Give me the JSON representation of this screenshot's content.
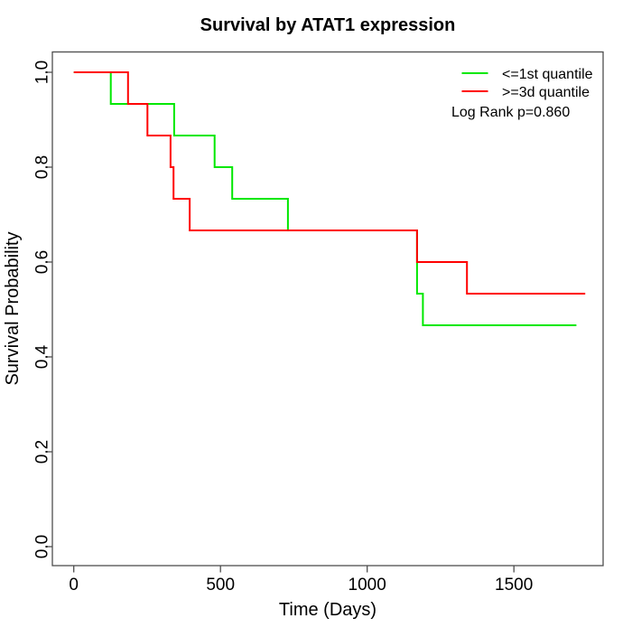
{
  "title": "Survival by ATAT1 expression",
  "axes": {
    "x": {
      "label": "Time (Days)",
      "tick_labels": [
        "0",
        "500",
        "1000",
        "1500"
      ]
    },
    "y": {
      "label": "Survival Probability",
      "tick_labels": [
        "0.0",
        "0.2",
        "0.4",
        "0.6",
        "0.8",
        "1.0"
      ]
    }
  },
  "legend": {
    "position": "top-right",
    "entries": [
      {
        "label": "<=1st quantile",
        "color": "#00e800"
      },
      {
        "label": ">=3d quantile",
        "color": "#ff0000"
      }
    ],
    "note": "Log Rank p=0.860"
  },
  "chart_data": {
    "type": "line",
    "subtype": "kaplan-meier-step",
    "title": "Survival by ATAT1 expression",
    "xlabel": "Time (Days)",
    "ylabel": "Survival Probability",
    "xlim": [
      0,
      1800
    ],
    "ylim": [
      0.0,
      1.0
    ],
    "x_ticks": [
      0,
      500,
      1000,
      1500
    ],
    "y_ticks": [
      0.0,
      0.2,
      0.4,
      0.6,
      0.8,
      1.0
    ],
    "grid": false,
    "legend_position": "top-right",
    "annotation": "Log Rank p=0.860",
    "series": [
      {
        "id": "le-1st-quantile",
        "name": "<=1st quantile",
        "color": "#00e800",
        "steps": [
          [
            0,
            1.0
          ],
          [
            126,
            0.9333
          ],
          [
            342,
            0.8667
          ],
          [
            480,
            0.8
          ],
          [
            540,
            0.7333
          ],
          [
            730,
            0.6667
          ],
          [
            1170,
            0.5333
          ],
          [
            1190,
            0.4667
          ]
        ],
        "end_time": 1713
      },
      {
        "id": "ge-3d-quantile",
        "name": ">=3d quantile",
        "color": "#ff0000",
        "steps": [
          [
            0,
            1.0
          ],
          [
            185,
            0.9333
          ],
          [
            251,
            0.8667
          ],
          [
            330,
            0.8
          ],
          [
            340,
            0.7333
          ],
          [
            395,
            0.6667
          ],
          [
            1170,
            0.6
          ],
          [
            1340,
            0.5333
          ]
        ],
        "end_time": 1743
      }
    ]
  }
}
